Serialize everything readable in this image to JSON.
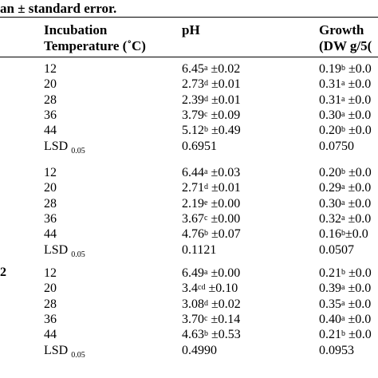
{
  "caption": "an ± standard error.",
  "headers": {
    "temp_line1": "Incubation",
    "temp_line2": "Temperature (˚C)",
    "ph": "pH",
    "growth_line1": "Growth",
    "growth_line2": "(DW g/5("
  },
  "groups": [
    {
      "label": "",
      "rows": [
        {
          "temp": "12",
          "ph": "6.45",
          "ph_sup": "a",
          "ph_err": " ±0.02",
          "gr": "0.19",
          "gr_sup": "b",
          "gr_err": " ±0.0"
        },
        {
          "temp": "20",
          "ph": "2.73",
          "ph_sup": "d",
          "ph_err": " ±0.01",
          "gr": "0.31",
          "gr_sup": "a",
          "gr_err": " ±0.0"
        },
        {
          "temp": "28",
          "ph": "2.39",
          "ph_sup": "d",
          "ph_err": " ±0.01",
          "gr": "0.31",
          "gr_sup": "a",
          "gr_err": " ±0.0"
        },
        {
          "temp": "36",
          "ph": "3.79",
          "ph_sup": "c",
          "ph_err": " ±0.09",
          "gr": "0.30",
          "gr_sup": "a",
          "gr_err": " ±0.0"
        },
        {
          "temp": "44",
          "ph": "5.12",
          "ph_sup": "b",
          "ph_err": " ±0.49",
          "gr": "0.20",
          "gr_sup": "b",
          "gr_err": " ±0.0"
        }
      ],
      "lsd": {
        "label": "LSD",
        "sub": "0.05",
        "ph": "0.6951",
        "gr": "0.0750"
      }
    },
    {
      "label": "",
      "rows": [
        {
          "temp": "12",
          "ph": "6.44",
          "ph_sup": "a",
          "ph_err": " ±0.03",
          "gr": "0.20",
          "gr_sup": "b",
          "gr_err": " ±0.0"
        },
        {
          "temp": "20",
          "ph": "2.71",
          "ph_sup": "d",
          "ph_err": " ±0.01",
          "gr": "0.29",
          "gr_sup": "a",
          "gr_err": " ±0.0"
        },
        {
          "temp": "28",
          "ph": "2.19",
          "ph_sup": "e",
          "ph_err": " ±0.00",
          "gr": "0.30",
          "gr_sup": "a",
          "gr_err": " ±0.0"
        },
        {
          "temp": "36",
          "ph": "3.67",
          "ph_sup": "c",
          "ph_err": " ±0.00",
          "gr": "0.32",
          "gr_sup": "a",
          "gr_err": " ±0.0"
        },
        {
          "temp": "44",
          "ph": "4.76",
          "ph_sup": "b",
          "ph_err": " ±0.07",
          "gr": "0.16",
          "gr_sup": "b",
          "gr_err": "±0.0"
        }
      ],
      "lsd": {
        "label": "LSD",
        "sub": "0.05",
        "ph": "0.1121",
        "gr": "0.0507"
      }
    },
    {
      "label": "2",
      "rows": [
        {
          "temp": "12",
          "ph": "6.49",
          "ph_sup": "a",
          "ph_err": " ±0.00",
          "gr": "0.21",
          "gr_sup": "b",
          "gr_err": " ±0.0"
        },
        {
          "temp": "20",
          "ph": "3.4",
          "ph_sup": "cd",
          "ph_err": " ±0.10",
          "gr": "0.39",
          "gr_sup": "a",
          "gr_err": " ±0.0"
        },
        {
          "temp": "28",
          "ph": "3.08",
          "ph_sup": "d",
          "ph_err": " ±0.02",
          "gr": "0.35",
          "gr_sup": "a",
          "gr_err": " ±0.0"
        },
        {
          "temp": "36",
          "ph": "3.70",
          "ph_sup": "c",
          "ph_err": " ±0.14",
          "gr": "0.40",
          "gr_sup": "a",
          "gr_err": " ±0.0"
        },
        {
          "temp": "44",
          "ph": "4.63",
          "ph_sup": "b",
          "ph_err": " ±0.53",
          "gr": "0.21",
          "gr_sup": "b",
          "gr_err": " ±0.0"
        }
      ],
      "lsd": {
        "label": "LSD",
        "sub": "0.05",
        "ph": "0.4990",
        "gr": "0.0953"
      }
    }
  ]
}
